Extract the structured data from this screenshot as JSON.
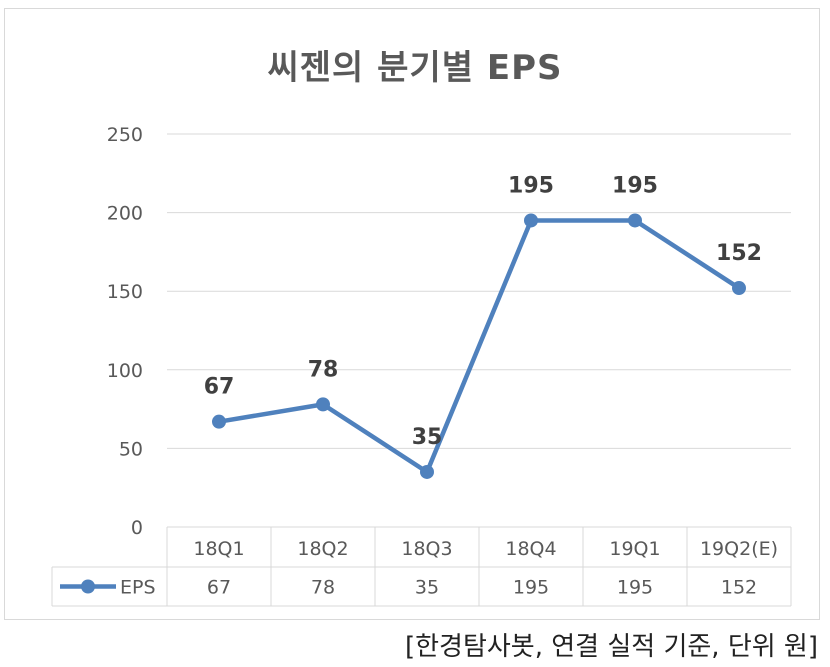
{
  "chart_data": {
    "type": "line",
    "title": "씨젠의 분기별 EPS",
    "categories": [
      "18Q1",
      "18Q2",
      "18Q3",
      "18Q4",
      "19Q1",
      "19Q2(E)"
    ],
    "series": [
      {
        "name": "EPS",
        "values": [
          67,
          78,
          35,
          195,
          195,
          152
        ]
      }
    ],
    "yticks": [
      0,
      50,
      100,
      150,
      200,
      250
    ],
    "ylim": [
      0,
      250
    ],
    "grid": true,
    "legend": "data-table-left",
    "data_labels": [
      "67",
      "78",
      "35",
      "195",
      "195",
      "152"
    ],
    "colors": {
      "line": "#4f81bd",
      "grid": "#d9d9d9",
      "text": "#595959"
    }
  },
  "footnote": "[한경탐사봇, 연결 실적 기준, 단위 원]"
}
